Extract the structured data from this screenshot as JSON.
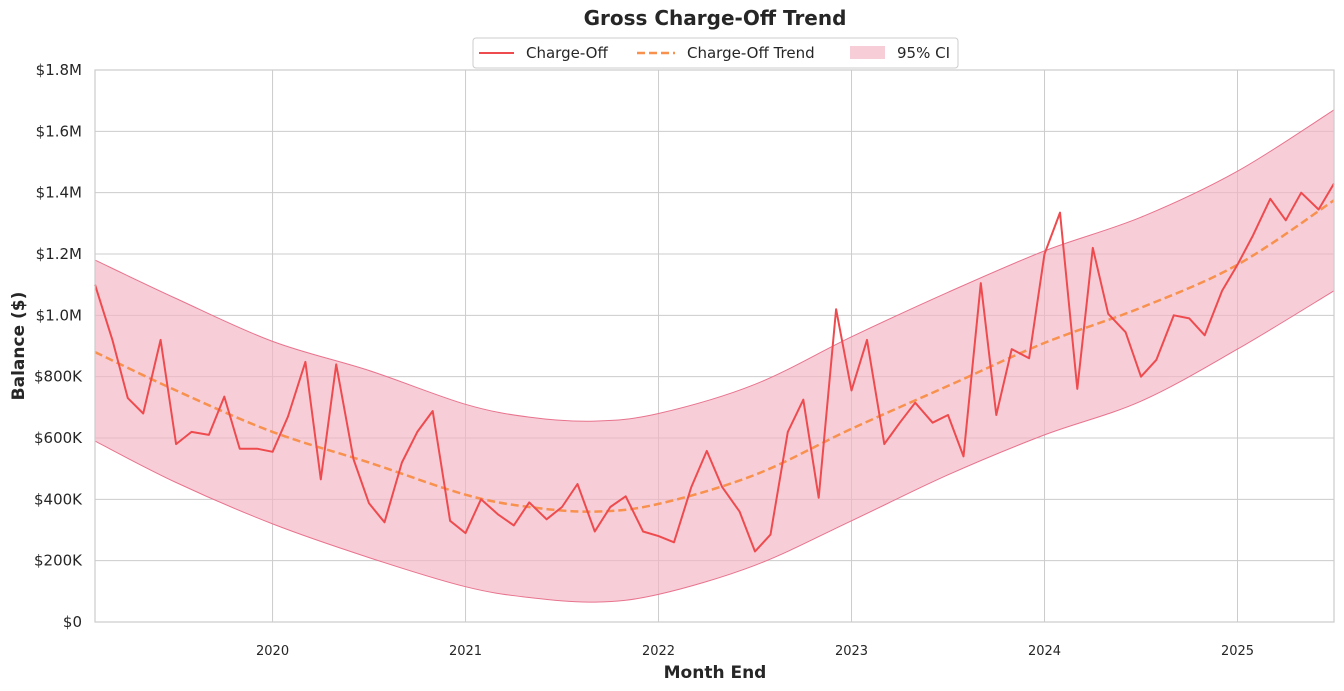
{
  "chart_data": {
    "type": "line",
    "title": "Gross Charge-Off Trend",
    "xlabel": "Month End",
    "ylabel": "Balance ($)",
    "x_start": "2019-01",
    "x_end": "2025-07",
    "xlim": [
      2019.08,
      2025.5
    ],
    "ylim": [
      0,
      1800000
    ],
    "grid": true,
    "legend_placement": "top-center",
    "x_tick_values": [
      2020,
      2021,
      2022,
      2023,
      2024,
      2025
    ],
    "x_tick_labels": [
      "2020",
      "2021",
      "2022",
      "2023",
      "2024",
      "2025"
    ],
    "y_tick_values": [
      0,
      200000,
      400000,
      600000,
      800000,
      1000000,
      1200000,
      1400000,
      1600000,
      1800000
    ],
    "y_tick_labels": [
      "$0",
      "$200K",
      "$400K",
      "$600K",
      "$800K",
      "$1.0M",
      "$1.2M",
      "$1.4M",
      "$1.6M",
      "$1.8M"
    ],
    "legend": {
      "charge_off": "Charge-Off",
      "trend": "Charge-Off Trend",
      "ci": "95% CI"
    },
    "colors": {
      "charge_off": "#ee4b4f",
      "trend": "#f8914e",
      "ci_fill": "#f3b3c2",
      "ci_edge": "#e8738e"
    },
    "series": [
      {
        "name": "Charge-Off",
        "x": [
          2019.08,
          2019.17,
          2019.25,
          2019.33,
          2019.42,
          2019.5,
          2019.58,
          2019.67,
          2019.75,
          2019.83,
          2019.92,
          2020.0,
          2020.08,
          2020.17,
          2020.25,
          2020.33,
          2020.42,
          2020.5,
          2020.58,
          2020.67,
          2020.75,
          2020.83,
          2020.92,
          2021.0,
          2021.08,
          2021.17,
          2021.25,
          2021.33,
          2021.42,
          2021.5,
          2021.58,
          2021.67,
          2021.75,
          2021.83,
          2021.92,
          2022.0,
          2022.08,
          2022.17,
          2022.25,
          2022.33,
          2022.42,
          2022.5,
          2022.58,
          2022.67,
          2022.75,
          2022.83,
          2022.92,
          2023.0,
          2023.08,
          2023.17,
          2023.25,
          2023.33,
          2023.42,
          2023.5,
          2023.58,
          2023.67,
          2023.75,
          2023.83,
          2023.92,
          2024.0,
          2024.08,
          2024.17,
          2024.25,
          2024.33,
          2024.42,
          2024.5,
          2024.58,
          2024.67,
          2024.75,
          2024.83,
          2024.92,
          2025.0,
          2025.08,
          2025.17,
          2025.25,
          2025.33,
          2025.42,
          2025.5
        ],
        "values": [
          1100000,
          920000,
          730000,
          680000,
          920000,
          580000,
          620000,
          610000,
          735000,
          565000,
          565000,
          555000,
          670000,
          848000,
          465000,
          840000,
          530000,
          387000,
          325000,
          520000,
          620000,
          688000,
          330000,
          290000,
          400000,
          350000,
          315000,
          390000,
          335000,
          375000,
          450000,
          295000,
          375000,
          410000,
          295000,
          280000,
          260000,
          440000,
          558000,
          440000,
          360000,
          230000,
          285000,
          620000,
          725000,
          405000,
          1020000,
          755000,
          920000,
          580000,
          650000,
          715000,
          650000,
          675000,
          540000,
          1105000,
          675000,
          890000,
          860000,
          1200000,
          1335000,
          760000,
          1220000,
          1005000,
          945000,
          800000,
          855000,
          1000000,
          990000,
          935000,
          1080000,
          1165000,
          1260000,
          1380000,
          1310000,
          1400000,
          1345000,
          1430000
        ]
      },
      {
        "name": "Charge-Off Trend",
        "x": [
          2019.08,
          2019.5,
          2020.0,
          2020.5,
          2021.0,
          2021.33,
          2021.67,
          2022.0,
          2022.5,
          2023.0,
          2023.5,
          2024.0,
          2024.5,
          2025.0,
          2025.5
        ],
        "values": [
          880000,
          755000,
          620000,
          520000,
          415000,
          375000,
          360000,
          385000,
          480000,
          630000,
          770000,
          910000,
          1025000,
          1165000,
          1375000
        ]
      },
      {
        "name": "95% CI",
        "x": [
          2019.08,
          2019.5,
          2020.0,
          2020.5,
          2021.0,
          2021.33,
          2021.67,
          2022.0,
          2022.5,
          2023.0,
          2023.5,
          2024.0,
          2024.5,
          2025.0,
          2025.5
        ],
        "lower": [
          590000,
          455000,
          320000,
          210000,
          115000,
          80000,
          65000,
          90000,
          185000,
          330000,
          480000,
          610000,
          720000,
          890000,
          1080000
        ],
        "upper": [
          1180000,
          1055000,
          915000,
          820000,
          710000,
          668000,
          655000,
          680000,
          775000,
          930000,
          1075000,
          1210000,
          1320000,
          1470000,
          1670000
        ]
      }
    ]
  }
}
